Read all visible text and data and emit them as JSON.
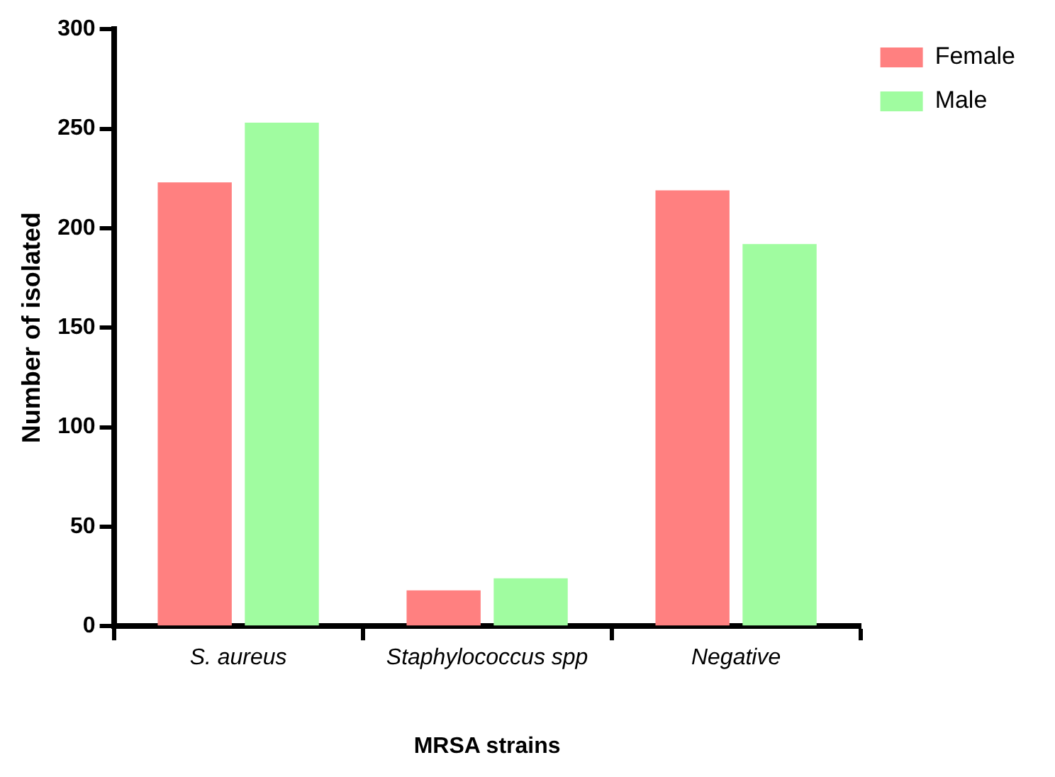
{
  "chart_data": {
    "type": "bar",
    "xlabel": "MRSA strains",
    "ylabel": "Number of isolated",
    "categories": [
      "S. aureus",
      "Staphylococcus spp",
      "Negative"
    ],
    "series": [
      {
        "name": "Female",
        "color": "#ff8080",
        "values": [
          223,
          18,
          219
        ]
      },
      {
        "name": "Male",
        "color": "#a0fca0",
        "values": [
          253,
          24,
          192
        ]
      }
    ],
    "ylim": [
      0,
      300
    ],
    "yticks": [
      0,
      50,
      100,
      150,
      200,
      250,
      300
    ],
    "grid": false,
    "legend": "top right"
  }
}
